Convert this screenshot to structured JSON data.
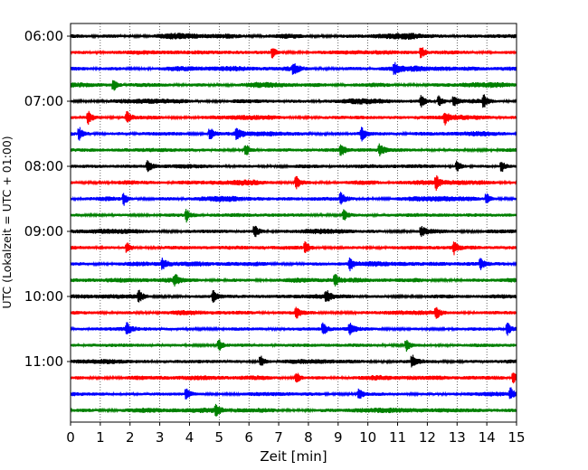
{
  "chart_data": {
    "type": "line",
    "title": "",
    "xlabel": "Zeit  [min]",
    "ylabel": "UTC (Lokalzeit = UTC + 01:00)",
    "xlim": [
      0,
      15
    ],
    "x_ticks": [
      "0",
      "1",
      "2",
      "3",
      "4",
      "5",
      "6",
      "7",
      "8",
      "9",
      "10",
      "11",
      "12",
      "13",
      "14",
      "15"
    ],
    "y_ticks": [
      "06:00",
      "07:00",
      "08:00",
      "09:00",
      "10:00",
      "11:00"
    ],
    "grid": "vertical-dotted",
    "trace_start_hour": "06:00",
    "trace_end_hour": "11:45",
    "trace_minutes": 15,
    "color_cycle": [
      "#000000",
      "#ff0000",
      "#0000ff",
      "#008000"
    ],
    "traces": [
      {
        "start": "06:00",
        "color": "#000000",
        "events": []
      },
      {
        "start": "06:15",
        "color": "#ff0000",
        "events": [
          6.8,
          11.8
        ]
      },
      {
        "start": "06:30",
        "color": "#0000ff",
        "events": [
          7.5,
          10.9
        ]
      },
      {
        "start": "06:45",
        "color": "#008000",
        "events": [
          1.45
        ]
      },
      {
        "start": "07:00",
        "color": "#000000",
        "events": [
          11.8,
          12.4,
          12.9,
          13.9
        ]
      },
      {
        "start": "07:15",
        "color": "#ff0000",
        "events": [
          0.6,
          1.9,
          12.6
        ]
      },
      {
        "start": "07:30",
        "color": "#0000ff",
        "events": [
          0.3,
          4.7,
          5.6,
          9.8
        ]
      },
      {
        "start": "07:45",
        "color": "#008000",
        "events": [
          5.9,
          9.1,
          10.4
        ]
      },
      {
        "start": "08:00",
        "color": "#000000",
        "events": [
          2.6,
          13.0,
          14.5
        ]
      },
      {
        "start": "08:15",
        "color": "#ff0000",
        "events": [
          7.6,
          12.3
        ]
      },
      {
        "start": "08:30",
        "color": "#0000ff",
        "events": [
          1.8,
          9.1,
          14.0
        ]
      },
      {
        "start": "08:45",
        "color": "#008000",
        "events": [
          3.9,
          9.2
        ]
      },
      {
        "start": "09:00",
        "color": "#000000",
        "events": [
          6.2,
          11.8
        ]
      },
      {
        "start": "09:15",
        "color": "#ff0000",
        "events": [
          1.9,
          7.9,
          12.9
        ]
      },
      {
        "start": "09:30",
        "color": "#0000ff",
        "events": [
          3.1,
          9.4,
          13.8
        ]
      },
      {
        "start": "09:45",
        "color": "#008000",
        "events": [
          3.5,
          8.9
        ]
      },
      {
        "start": "10:00",
        "color": "#000000",
        "events": [
          2.3,
          4.8,
          8.6
        ]
      },
      {
        "start": "10:15",
        "color": "#ff0000",
        "events": [
          7.6,
          12.3
        ]
      },
      {
        "start": "10:30",
        "color": "#0000ff",
        "events": [
          1.9,
          8.5,
          9.4,
          14.7
        ]
      },
      {
        "start": "10:45",
        "color": "#008000",
        "events": [
          5.0,
          11.3
        ]
      },
      {
        "start": "11:00",
        "color": "#000000",
        "events": [
          6.4,
          11.5
        ]
      },
      {
        "start": "11:15",
        "color": "#ff0000",
        "events": [
          7.6,
          14.9
        ]
      },
      {
        "start": "11:30",
        "color": "#0000ff",
        "events": [
          3.9,
          9.7,
          14.8
        ]
      },
      {
        "start": "11:45",
        "color": "#008000",
        "events": [
          4.9
        ]
      }
    ]
  }
}
